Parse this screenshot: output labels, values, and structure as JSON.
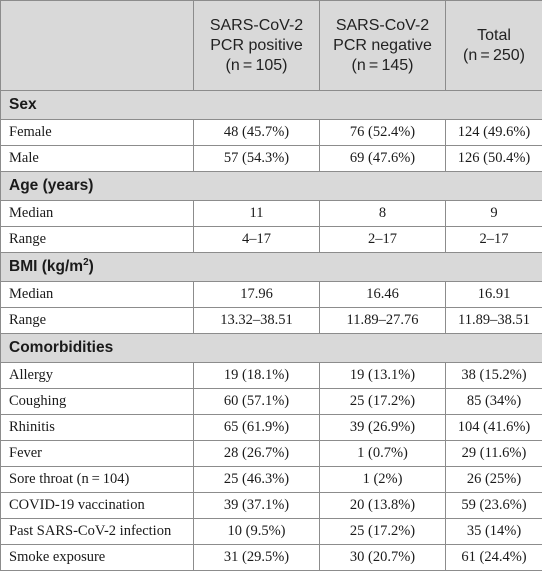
{
  "header": {
    "col1": [
      "SARS-CoV-2",
      "PCR positive",
      "(n = 105)"
    ],
    "col2": [
      "SARS-CoV-2",
      "PCR negative",
      "(n = 145)"
    ],
    "col3": [
      "Total",
      "(n = 250)"
    ]
  },
  "sections": {
    "sex": "Sex",
    "age": "Age (years)",
    "bmi": "BMI (kg/m",
    "bmi_sup": "2",
    "bmi_close": ")",
    "comorb": "Comorbidities"
  },
  "rows": {
    "female": [
      "Female",
      "48 (45.7%)",
      "76 (52.4%)",
      "124 (49.6%)"
    ],
    "male": [
      "Male",
      "57 (54.3%)",
      "69 (47.6%)",
      "126 (50.4%)"
    ],
    "age_median": [
      "Median",
      "11",
      "8",
      "9"
    ],
    "age_range": [
      "Range",
      "4–17",
      "2–17",
      "2–17"
    ],
    "bmi_median": [
      "Median",
      "17.96",
      "16.46",
      "16.91"
    ],
    "bmi_range": [
      "Range",
      "13.32–38.51",
      "11.89–27.76",
      "11.89–38.51"
    ],
    "allergy": [
      "Allergy",
      "19 (18.1%)",
      "19 (13.1%)",
      "38 (15.2%)"
    ],
    "coughing": [
      "Coughing",
      "60 (57.1%)",
      "25 (17.2%)",
      "85 (34%)"
    ],
    "rhinitis": [
      "Rhinitis",
      "65 (61.9%)",
      "39 (26.9%)",
      "104 (41.6%)"
    ],
    "fever": [
      "Fever",
      "28 (26.7%)",
      "1 (0.7%)",
      "29 (11.6%)"
    ],
    "sore_throat": [
      "Sore throat (n = 104)",
      "25 (46.3%)",
      "1 (2%)",
      "26 (25%)"
    ],
    "vaccination": [
      "COVID-19 vaccination",
      "39 (37.1%)",
      "20 (13.8%)",
      "59 (23.6%)"
    ],
    "past_infection": [
      "Past SARS-CoV-2 infection",
      "10 (9.5%)",
      "25 (17.2%)",
      "35 (14%)"
    ],
    "smoke": [
      "Smoke exposure",
      "31 (29.5%)",
      "30 (20.7%)",
      "61 (24.4%)"
    ]
  }
}
